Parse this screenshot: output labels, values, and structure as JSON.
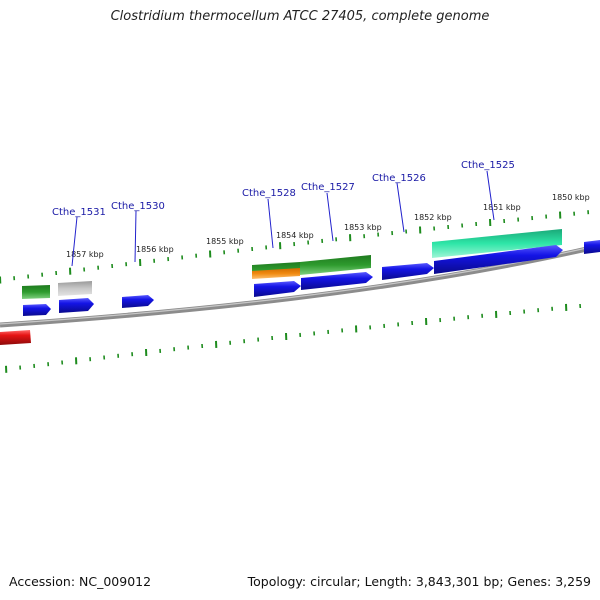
{
  "title": "Clostridium thermocellum ATCC 27405, complete genome",
  "accession_text": "Accession: NC_009012",
  "topology_text": "Topology: circular; Length: 3,843,301 bp; Genes: 3,259",
  "colors": {
    "backbone": "#8c8c8c",
    "tick": "#1e8c1e",
    "cds_forward": "#1414e6",
    "cds_reverse": "#e61414",
    "feature_green": "#2e9b2e",
    "feature_gray": "#b4b4b4",
    "feature_orange": "#f08a10",
    "feature_teal": "#2ee6a8",
    "label_line": "#2222cc"
  },
  "gene_labels": [
    "Cthe_1531",
    "Cthe_1530",
    "Cthe_1528",
    "Cthe_1527",
    "Cthe_1526",
    "Cthe_1525"
  ],
  "kbp_labels": [
    "1857 kbp",
    "1856 kbp",
    "1855 kbp",
    "1854 kbp",
    "1853 kbp",
    "1852 kbp",
    "1851 kbp",
    "1850 kbp"
  ]
}
